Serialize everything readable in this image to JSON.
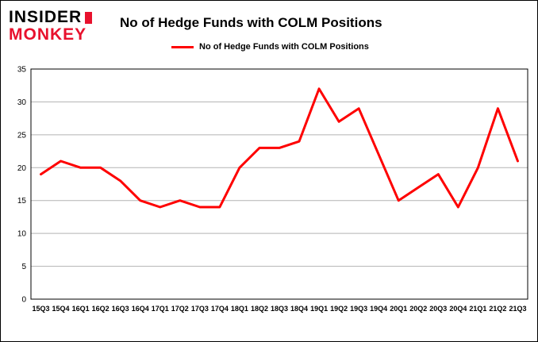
{
  "logo": {
    "line1": "INSIDER",
    "line2": "MONKEY"
  },
  "legend": {
    "label": "No of Hedge Funds with COLM Positions"
  },
  "colors": {
    "logo_red": "#e8112d",
    "title": "#000000",
    "background": "#ffffff"
  },
  "chart_data": {
    "type": "line",
    "title": "No of Hedge Funds with COLM Positions",
    "categories": [
      "15Q3",
      "15Q4",
      "16Q1",
      "16Q2",
      "16Q3",
      "16Q4",
      "17Q1",
      "17Q2",
      "17Q3",
      "17Q4",
      "18Q1",
      "18Q2",
      "18Q3",
      "18Q4",
      "19Q1",
      "19Q2",
      "19Q3",
      "19Q4",
      "20Q1",
      "20Q2",
      "20Q3",
      "20Q4",
      "21Q1",
      "21Q2",
      "21Q3"
    ],
    "series": [
      {
        "name": "No of Hedge Funds with COLM Positions",
        "values": [
          19,
          21,
          20,
          20,
          18,
          15,
          14,
          15,
          14,
          14,
          20,
          23,
          23,
          24,
          32,
          27,
          29,
          22,
          15,
          17,
          19,
          14,
          20,
          29,
          21
        ]
      }
    ],
    "xlabel": "",
    "ylabel": "",
    "ylim": [
      0,
      35
    ],
    "ytick": 5,
    "grid": true,
    "grid_color": "#b3b3b3",
    "line_color": "#fe0000",
    "line_width": 3,
    "legend_position": "top"
  }
}
